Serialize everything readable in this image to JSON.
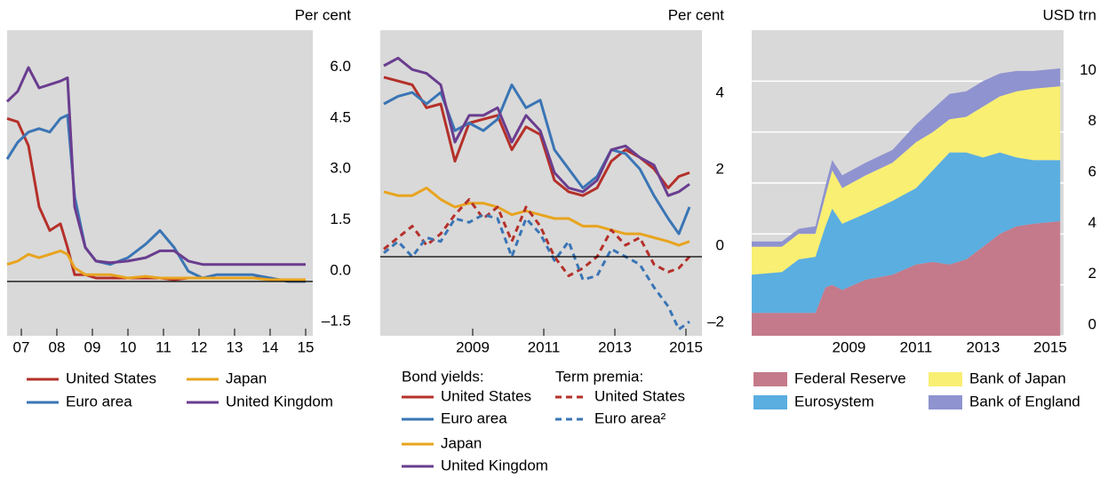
{
  "chart_data": [
    {
      "type": "line",
      "unit": "Per cent",
      "x": [
        2007.1,
        2007.4,
        2007.7,
        2008.0,
        2008.3,
        2008.6,
        2008.8,
        2009.0,
        2009.3,
        2009.6,
        2010.0,
        2010.5,
        2011.0,
        2011.4,
        2011.8,
        2012.2,
        2012.6,
        2013.0,
        2013.5,
        2014.0,
        2014.5,
        2015.0,
        2015.5
      ],
      "xlim": [
        2007.1,
        2015.7
      ],
      "xticks": [
        {
          "value": 2007.5,
          "label": "07"
        },
        {
          "value": 2008.5,
          "label": "08"
        },
        {
          "value": 2009.5,
          "label": "09"
        },
        {
          "value": 2010.5,
          "label": "10"
        },
        {
          "value": 2011.5,
          "label": "11"
        },
        {
          "value": 2012.5,
          "label": "12"
        },
        {
          "value": 2013.5,
          "label": "13"
        },
        {
          "value": 2014.5,
          "label": "14"
        },
        {
          "value": 2015.5,
          "label": "15"
        }
      ],
      "ylim": [
        -1.6,
        7.4
      ],
      "yticks": [
        {
          "value": 6,
          "label": "6.0"
        },
        {
          "value": 4.5,
          "label": "4.5"
        },
        {
          "value": 3,
          "label": "3.0"
        },
        {
          "value": 1.5,
          "label": "1.5"
        },
        {
          "value": 0,
          "label": "0.0"
        },
        {
          "value": -1.5,
          "label": "–1.5"
        }
      ],
      "zero_line": true,
      "grid": false,
      "series": [
        {
          "name": "United States",
          "color": "#b5302a",
          "values": [
            4.8,
            4.7,
            4.0,
            2.2,
            1.5,
            1.7,
            1.0,
            0.2,
            0.2,
            0.1,
            0.1,
            0.1,
            0.1,
            0.1,
            0.05,
            0.1,
            0.1,
            0.1,
            0.1,
            0.1,
            0.1,
            0.0,
            0.0
          ]
        },
        {
          "name": "Euro area",
          "color": "#3a75b5",
          "values": [
            3.6,
            4.1,
            4.4,
            4.5,
            4.4,
            4.8,
            4.9,
            2.5,
            1.0,
            0.6,
            0.5,
            0.7,
            1.1,
            1.5,
            1.0,
            0.3,
            0.1,
            0.2,
            0.2,
            0.2,
            0.1,
            0.0,
            0.0
          ]
        },
        {
          "name": "Japan",
          "color": "#e8a41f",
          "values": [
            0.5,
            0.6,
            0.8,
            0.7,
            0.8,
            0.9,
            0.8,
            0.4,
            0.2,
            0.2,
            0.2,
            0.1,
            0.15,
            0.1,
            0.1,
            0.1,
            0.1,
            0.1,
            0.1,
            0.1,
            0.05,
            0.05,
            0.05
          ]
        },
        {
          "name": "United Kingdom",
          "color": "#6a3d8f",
          "values": [
            5.3,
            5.6,
            6.3,
            5.7,
            5.8,
            5.9,
            6.0,
            2.2,
            1.0,
            0.6,
            0.55,
            0.6,
            0.7,
            0.9,
            0.9,
            0.6,
            0.5,
            0.5,
            0.5,
            0.5,
            0.5,
            0.5,
            0.5
          ]
        }
      ]
    },
    {
      "type": "line",
      "unit": "Per cent",
      "legend_titles": [
        "Bond yields:",
        "Term premia:"
      ],
      "x": [
        2007.0,
        2007.4,
        2007.8,
        2008.2,
        2008.6,
        2009.0,
        2009.4,
        2009.8,
        2010.2,
        2010.6,
        2011.0,
        2011.4,
        2011.8,
        2012.2,
        2012.6,
        2013.0,
        2013.4,
        2013.8,
        2014.2,
        2014.6,
        2015.0,
        2015.3,
        2015.6
      ],
      "xlim": [
        2006.9,
        2015.95
      ],
      "xticks": [
        {
          "value": 2009.5,
          "label": "2009"
        },
        {
          "value": 2011.5,
          "label": "2011"
        },
        {
          "value": 2013.5,
          "label": "2013"
        },
        {
          "value": 2015.5,
          "label": "2015"
        }
      ],
      "ylim": [
        -2.07,
        5.93
      ],
      "yticks": [
        4,
        2,
        0,
        {
          "value": -2,
          "label": "–2"
        }
      ],
      "zero_line": true,
      "grid": false,
      "series": [
        {
          "name": "United States",
          "color": "#b5302a",
          "dashed": false,
          "values": [
            4.7,
            4.6,
            4.5,
            3.9,
            4.0,
            2.5,
            3.5,
            3.6,
            3.7,
            2.8,
            3.4,
            3.2,
            2.0,
            1.7,
            1.6,
            1.8,
            2.5,
            2.8,
            2.6,
            2.3,
            1.8,
            2.1,
            2.2
          ]
        },
        {
          "name": "Euro area",
          "color": "#3a75b5",
          "dashed": false,
          "values": [
            4.0,
            4.2,
            4.3,
            4.0,
            4.3,
            3.3,
            3.5,
            3.3,
            3.6,
            4.5,
            3.9,
            4.1,
            2.8,
            2.3,
            1.8,
            2.1,
            2.8,
            2.7,
            2.3,
            1.6,
            1.0,
            0.6,
            1.3
          ]
        },
        {
          "name": "Japan",
          "color": "#e8a41f",
          "dashed": false,
          "values": [
            1.7,
            1.6,
            1.6,
            1.8,
            1.5,
            1.3,
            1.4,
            1.4,
            1.3,
            1.1,
            1.2,
            1.1,
            1.0,
            1.0,
            0.8,
            0.8,
            0.7,
            0.6,
            0.6,
            0.5,
            0.4,
            0.3,
            0.4
          ]
        },
        {
          "name": "United Kingdom",
          "color": "#6a3d8f",
          "dashed": false,
          "values": [
            5.0,
            5.2,
            4.9,
            4.8,
            4.5,
            3.0,
            3.7,
            3.7,
            3.9,
            3.0,
            3.7,
            3.3,
            2.2,
            1.8,
            1.7,
            2.0,
            2.8,
            2.9,
            2.6,
            2.4,
            1.6,
            1.7,
            1.9
          ]
        },
        {
          "name": "United States",
          "color": "#b5302a",
          "dashed": true,
          "values": [
            0.2,
            0.5,
            0.8,
            0.3,
            0.6,
            1.1,
            1.5,
            1.0,
            1.3,
            0.4,
            1.3,
            0.8,
            0.0,
            -0.5,
            -0.3,
            0.0,
            0.7,
            0.3,
            0.5,
            -0.2,
            -0.4,
            -0.3,
            0.0
          ]
        },
        {
          "name": "Euro area²",
          "color": "#3a75b5",
          "dashed": true,
          "values": [
            0.1,
            0.4,
            0.0,
            0.5,
            0.4,
            1.0,
            0.9,
            1.1,
            1.0,
            0.0,
            1.0,
            0.6,
            -0.1,
            0.4,
            -0.6,
            -0.5,
            0.2,
            0.0,
            -0.2,
            -0.8,
            -1.3,
            -1.9,
            -1.7
          ]
        }
      ]
    },
    {
      "type": "area",
      "unit": "USD trn",
      "x": [
        2006.6,
        2007.5,
        2008.0,
        2008.5,
        2008.8,
        2009.0,
        2009.3,
        2010.0,
        2010.8,
        2011.5,
        2012.0,
        2012.5,
        2013.0,
        2013.5,
        2014.0,
        2014.5,
        2015.0,
        2015.8
      ],
      "xlim": [
        2006.6,
        2015.9
      ],
      "xticks": [
        {
          "value": 2009.5,
          "label": "2009"
        },
        {
          "value": 2011.5,
          "label": "2011"
        },
        {
          "value": 2013.5,
          "label": "2013"
        },
        {
          "value": 2015.5,
          "label": "2015"
        }
      ],
      "ylim": [
        0,
        12
      ],
      "yticks": [
        10,
        8,
        6,
        4,
        2,
        0
      ],
      "zero_line": false,
      "grid": true,
      "stacked": true,
      "series": [
        {
          "name": "Federal Reserve",
          "color": "#c47a8a",
          "values": [
            0.9,
            0.9,
            0.9,
            0.9,
            1.9,
            2.0,
            1.8,
            2.2,
            2.4,
            2.8,
            2.9,
            2.8,
            3.0,
            3.5,
            4.0,
            4.3,
            4.4,
            4.5
          ]
        },
        {
          "name": "Eurosystem",
          "color": "#5aaee0",
          "values": [
            1.5,
            1.6,
            2.1,
            2.2,
            2.4,
            3.0,
            2.6,
            2.6,
            2.9,
            3.0,
            3.6,
            4.4,
            4.2,
            3.5,
            3.2,
            2.7,
            2.5,
            2.4
          ]
        },
        {
          "name": "Bank of Japan",
          "color": "#f9ef72",
          "values": [
            1.1,
            1.0,
            1.0,
            0.9,
            1.2,
            1.5,
            1.4,
            1.5,
            1.5,
            1.8,
            1.5,
            1.3,
            1.4,
            2.0,
            2.2,
            2.6,
            2.8,
            2.9
          ]
        },
        {
          "name": "Bank of England",
          "color": "#8f93cf",
          "values": [
            0.2,
            0.2,
            0.2,
            0.3,
            0.4,
            0.4,
            0.5,
            0.5,
            0.5,
            0.7,
            0.9,
            1.0,
            1.0,
            1.0,
            0.9,
            0.8,
            0.7,
            0.7
          ]
        }
      ]
    }
  ]
}
